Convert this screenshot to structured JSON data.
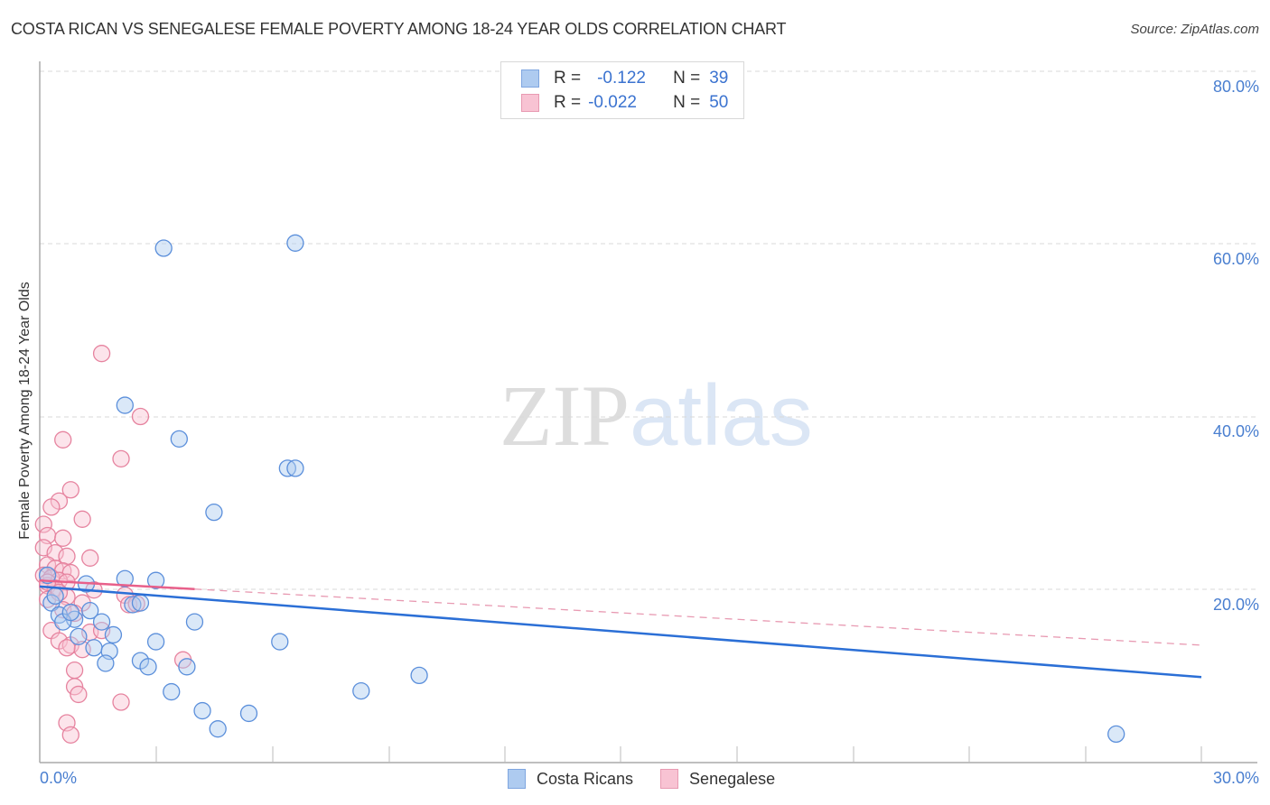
{
  "header": {
    "title": "COSTA RICAN VS SENEGALESE FEMALE POVERTY AMONG 18-24 YEAR OLDS CORRELATION CHART",
    "source": "Source: ZipAtlas.com"
  },
  "watermark": {
    "zip": "ZIP",
    "atlas": "atlas"
  },
  "legend": {
    "rows": [
      {
        "r_label": "R =",
        "r_value": "-0.122",
        "n_label": "N =",
        "n_value": "39",
        "color": "#aecbf0",
        "border": "#7fa6e0"
      },
      {
        "r_label": "R =",
        "r_value": "-0.022",
        "n_label": "N =",
        "n_value": "50",
        "color": "#f8c3d3",
        "border": "#e89ab2"
      }
    ]
  },
  "bottom_legend": {
    "items": [
      {
        "label": "Costa Ricans",
        "color": "#aecbf0",
        "border": "#7fa6e0"
      },
      {
        "label": "Senegalese",
        "color": "#f8c3d3",
        "border": "#e89ab2"
      }
    ]
  },
  "axes": {
    "ylabel": "Female Poverty Among 18-24 Year Olds",
    "yticks": [
      "80.0%",
      "60.0%",
      "40.0%",
      "20.0%"
    ],
    "xticks": [
      "0.0%",
      "30.0%"
    ]
  },
  "chart_data": {
    "type": "scatter",
    "title": "COSTA RICAN VS SENEGALESE FEMALE POVERTY AMONG 18-24 YEAR OLDS CORRELATION CHART",
    "xlabel": "",
    "ylabel": "Female Poverty Among 18-24 Year Olds",
    "xlim": [
      0,
      30
    ],
    "ylim": [
      0,
      80
    ],
    "x_unit": "%",
    "y_unit": "%",
    "grid": "horizontal dashed at 20, 40, 60, 80",
    "legend_position": "top-center (stats) and bottom-center (series)",
    "series": [
      {
        "name": "Costa Ricans",
        "color": "#6e9fe0",
        "R": -0.122,
        "N": 39,
        "trend": {
          "x": [
            0,
            30
          ],
          "y": [
            20.3,
            9.8
          ],
          "style": "solid"
        },
        "points": [
          [
            3.2,
            59.5
          ],
          [
            6.6,
            60.1
          ],
          [
            2.2,
            41.3
          ],
          [
            3.6,
            37.4
          ],
          [
            6.4,
            34.0
          ],
          [
            6.6,
            34.0
          ],
          [
            4.5,
            28.9
          ],
          [
            1.2,
            20.6
          ],
          [
            2.2,
            21.2
          ],
          [
            3.0,
            21.0
          ],
          [
            0.3,
            18.4
          ],
          [
            2.4,
            18.2
          ],
          [
            2.6,
            18.4
          ],
          [
            0.5,
            17.0
          ],
          [
            1.3,
            17.5
          ],
          [
            0.9,
            16.5
          ],
          [
            0.6,
            16.2
          ],
          [
            1.6,
            16.2
          ],
          [
            4.0,
            16.2
          ],
          [
            1.0,
            14.5
          ],
          [
            1.9,
            14.7
          ],
          [
            3.0,
            13.9
          ],
          [
            6.2,
            13.9
          ],
          [
            1.4,
            13.2
          ],
          [
            1.8,
            12.8
          ],
          [
            1.7,
            11.4
          ],
          [
            2.6,
            11.7
          ],
          [
            2.8,
            11.0
          ],
          [
            3.8,
            11.0
          ],
          [
            9.8,
            10.0
          ],
          [
            3.4,
            8.1
          ],
          [
            8.3,
            8.2
          ],
          [
            4.2,
            5.9
          ],
          [
            5.4,
            5.6
          ],
          [
            4.6,
            3.8
          ],
          [
            27.8,
            3.2
          ],
          [
            0.2,
            21.6
          ],
          [
            0.4,
            19.2
          ],
          [
            0.8,
            17.3
          ]
        ]
      },
      {
        "name": "Senegalese",
        "color": "#ef9ab5",
        "R": -0.022,
        "N": 50,
        "trend": {
          "x": [
            0,
            30
          ],
          "y": [
            21.0,
            13.5
          ],
          "solid_until_x": 4.0,
          "style": "solid then dashed"
        },
        "points": [
          [
            1.6,
            47.3
          ],
          [
            2.6,
            40.0
          ],
          [
            2.1,
            35.1
          ],
          [
            0.6,
            37.3
          ],
          [
            0.8,
            31.5
          ],
          [
            0.5,
            30.2
          ],
          [
            0.3,
            29.5
          ],
          [
            1.1,
            28.1
          ],
          [
            0.1,
            27.5
          ],
          [
            0.2,
            26.2
          ],
          [
            0.6,
            25.9
          ],
          [
            0.1,
            24.8
          ],
          [
            0.4,
            24.2
          ],
          [
            0.7,
            23.8
          ],
          [
            1.3,
            23.6
          ],
          [
            0.2,
            22.8
          ],
          [
            0.4,
            22.4
          ],
          [
            0.6,
            22.1
          ],
          [
            0.8,
            21.9
          ],
          [
            0.1,
            21.6
          ],
          [
            0.3,
            21.3
          ],
          [
            0.5,
            21.0
          ],
          [
            0.7,
            20.8
          ],
          [
            0.2,
            20.4
          ],
          [
            0.4,
            20.1
          ],
          [
            1.4,
            19.9
          ],
          [
            2.2,
            19.3
          ],
          [
            0.7,
            19.1
          ],
          [
            0.2,
            18.8
          ],
          [
            1.1,
            18.4
          ],
          [
            2.3,
            18.2
          ],
          [
            2.5,
            18.3
          ],
          [
            0.6,
            17.6
          ],
          [
            0.9,
            17.2
          ],
          [
            0.3,
            15.2
          ],
          [
            1.3,
            15.0
          ],
          [
            1.6,
            15.2
          ],
          [
            0.5,
            14.0
          ],
          [
            0.8,
            13.5
          ],
          [
            1.1,
            13.0
          ],
          [
            0.7,
            13.2
          ],
          [
            3.7,
            11.8
          ],
          [
            0.9,
            10.6
          ],
          [
            0.9,
            8.7
          ],
          [
            1.0,
            7.8
          ],
          [
            2.1,
            6.9
          ],
          [
            0.7,
            4.5
          ],
          [
            0.8,
            3.1
          ],
          [
            0.2,
            20.8
          ],
          [
            0.5,
            19.6
          ]
        ]
      }
    ]
  }
}
